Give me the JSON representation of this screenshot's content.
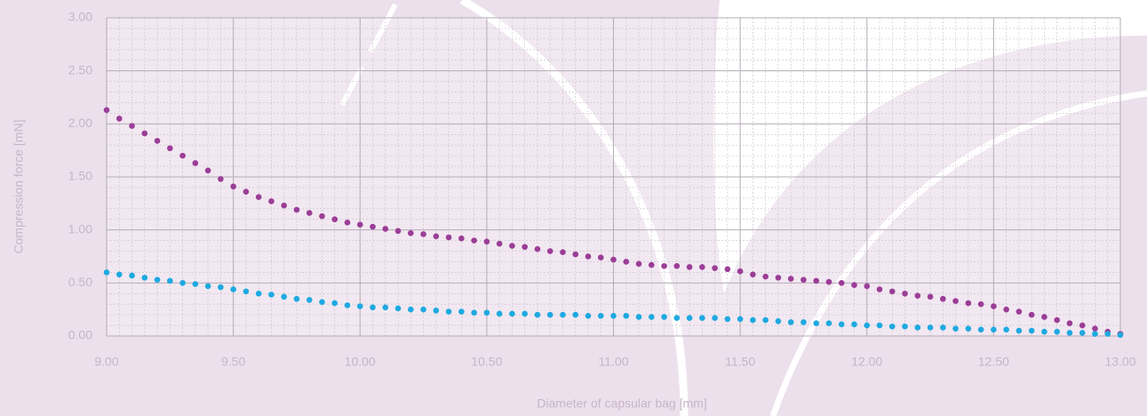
{
  "chart_data": {
    "type": "scatter",
    "x_label": "Diameter of capsular bag [mm]",
    "y_label": "Compression force [mN]",
    "x": [
      9.0,
      9.05,
      9.1,
      9.15,
      9.2,
      9.25,
      9.3,
      9.35,
      9.4,
      9.45,
      9.5,
      9.55,
      9.6,
      9.65,
      9.7,
      9.75,
      9.8,
      9.85,
      9.9,
      9.95,
      10.0,
      10.05,
      10.1,
      10.15,
      10.2,
      10.25,
      10.3,
      10.35,
      10.4,
      10.45,
      10.5,
      10.55,
      10.6,
      10.65,
      10.7,
      10.75,
      10.8,
      10.85,
      10.9,
      10.95,
      11.0,
      11.05,
      11.1,
      11.15,
      11.2,
      11.25,
      11.3,
      11.35,
      11.4,
      11.45,
      11.5,
      11.55,
      11.6,
      11.65,
      11.7,
      11.75,
      11.8,
      11.85,
      11.9,
      11.95,
      12.0,
      12.05,
      12.1,
      12.15,
      12.2,
      12.25,
      12.3,
      12.35,
      12.4,
      12.45,
      12.5,
      12.55,
      12.6,
      12.65,
      12.7,
      12.75,
      12.8,
      12.85,
      12.9,
      12.95,
      13.0
    ],
    "series": [
      {
        "color": "#9b3d97",
        "values": [
          2.13,
          2.05,
          1.98,
          1.91,
          1.84,
          1.77,
          1.7,
          1.63,
          1.56,
          1.48,
          1.41,
          1.36,
          1.31,
          1.27,
          1.23,
          1.19,
          1.16,
          1.13,
          1.1,
          1.07,
          1.05,
          1.03,
          1.01,
          0.99,
          0.97,
          0.96,
          0.94,
          0.93,
          0.92,
          0.9,
          0.89,
          0.87,
          0.85,
          0.84,
          0.82,
          0.8,
          0.79,
          0.77,
          0.75,
          0.74,
          0.72,
          0.7,
          0.68,
          0.67,
          0.66,
          0.66,
          0.65,
          0.65,
          0.64,
          0.63,
          0.61,
          0.58,
          0.56,
          0.55,
          0.54,
          0.53,
          0.52,
          0.51,
          0.5,
          0.48,
          0.47,
          0.44,
          0.42,
          0.4,
          0.38,
          0.37,
          0.35,
          0.33,
          0.31,
          0.3,
          0.28,
          0.25,
          0.23,
          0.2,
          0.18,
          0.15,
          0.12,
          0.1,
          0.07,
          0.04,
          0.02
        ]
      },
      {
        "color": "#1ea9e1",
        "values": [
          0.6,
          0.58,
          0.57,
          0.55,
          0.53,
          0.52,
          0.5,
          0.49,
          0.47,
          0.46,
          0.44,
          0.42,
          0.4,
          0.39,
          0.37,
          0.35,
          0.34,
          0.32,
          0.31,
          0.29,
          0.28,
          0.27,
          0.27,
          0.26,
          0.25,
          0.25,
          0.24,
          0.23,
          0.23,
          0.22,
          0.22,
          0.21,
          0.21,
          0.21,
          0.2,
          0.2,
          0.2,
          0.2,
          0.19,
          0.19,
          0.19,
          0.19,
          0.18,
          0.18,
          0.18,
          0.17,
          0.17,
          0.17,
          0.17,
          0.16,
          0.16,
          0.15,
          0.15,
          0.14,
          0.13,
          0.13,
          0.12,
          0.12,
          0.11,
          0.11,
          0.1,
          0.1,
          0.09,
          0.09,
          0.08,
          0.08,
          0.08,
          0.07,
          0.07,
          0.06,
          0.06,
          0.06,
          0.05,
          0.05,
          0.04,
          0.04,
          0.03,
          0.03,
          0.02,
          0.02,
          0.01
        ]
      }
    ],
    "xlim": [
      9,
      13
    ],
    "xticks": [
      {
        "value": 9,
        "label": "9.00"
      },
      {
        "value": 9.5,
        "label": "9.50"
      },
      {
        "value": 10,
        "label": "10.00"
      },
      {
        "value": 10.5,
        "label": "10.50"
      },
      {
        "value": 11,
        "label": "11.00"
      },
      {
        "value": 11.5,
        "label": "11.50"
      },
      {
        "value": 12,
        "label": "12.00"
      },
      {
        "value": 12.5,
        "label": "12.50"
      },
      {
        "value": 13,
        "label": "13.00"
      }
    ],
    "ylim": [
      0,
      3
    ],
    "yticks": [
      {
        "value": 0,
        "label": "0.00"
      },
      {
        "value": 0.5,
        "label": "0.50"
      },
      {
        "value": 1,
        "label": "1.00"
      },
      {
        "value": 1.5,
        "label": "1.50"
      },
      {
        "value": 2,
        "label": "2.00"
      },
      {
        "value": 2.5,
        "label": "2.50"
      },
      {
        "value": 3,
        "label": "3.00"
      }
    ],
    "grid": true
  }
}
